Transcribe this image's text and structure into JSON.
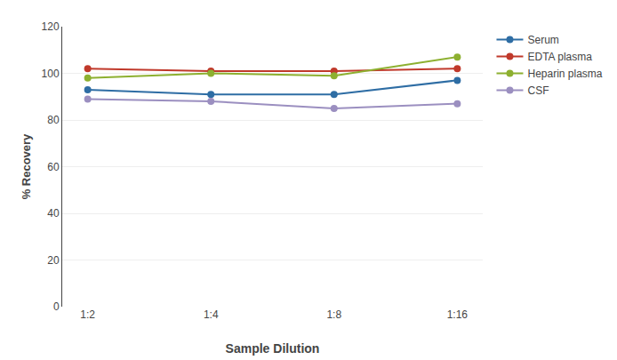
{
  "chart_data": {
    "type": "line",
    "xlabel": "Sample Dilution",
    "ylabel": "% Recovery",
    "categories": [
      "1:2",
      "1:4",
      "1:8",
      "1:16"
    ],
    "series": [
      {
        "name": "Serum",
        "color": "#2e6da4",
        "values": [
          93,
          91,
          91,
          97
        ]
      },
      {
        "name": "EDTA plasma",
        "color": "#c0392b",
        "values": [
          102,
          101,
          101,
          102
        ]
      },
      {
        "name": "Heparin plasma",
        "color": "#8db030",
        "values": [
          98,
          100,
          99,
          107
        ]
      },
      {
        "name": "CSF",
        "color": "#9b8fc0",
        "values": [
          89,
          88,
          85,
          87
        ]
      }
    ],
    "ylim": [
      0,
      120
    ],
    "yticks": [
      0,
      20,
      40,
      60,
      80,
      100,
      120
    ],
    "grid": true,
    "legend": "right",
    "marker": "circle"
  }
}
